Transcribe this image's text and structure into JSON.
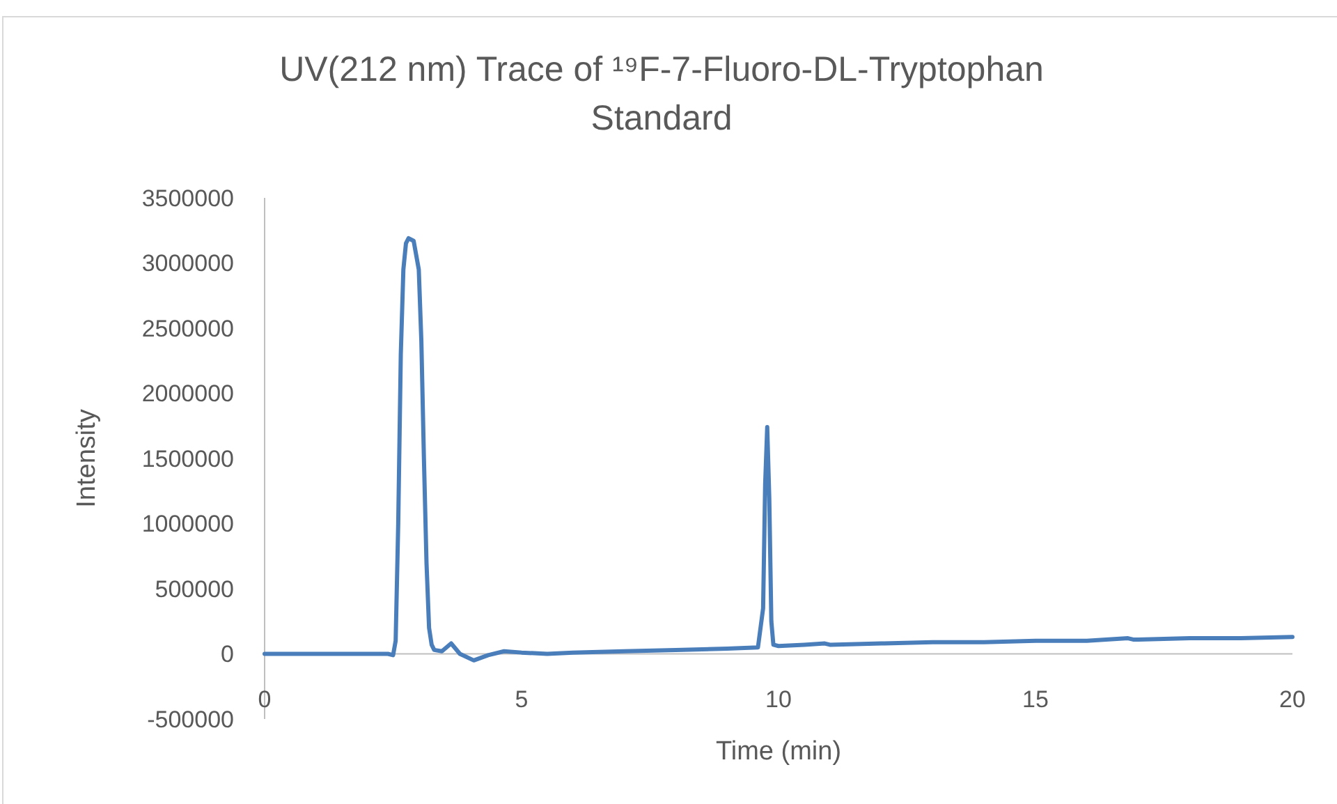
{
  "chart_data": {
    "type": "line",
    "title": "UV(212 nm) Trace of ¹⁹F-7-Fluoro-DL-Tryptophan Standard",
    "xlabel": "Time (min)",
    "ylabel": "Intensity",
    "xlim": [
      0,
      20
    ],
    "xticks": [
      0,
      5,
      10,
      15,
      20
    ],
    "ylim": [
      -500000,
      3500000
    ],
    "yticks": [
      -500000,
      0,
      500000,
      1000000,
      1500000,
      2000000,
      2500000,
      3000000,
      3500000
    ],
    "grid": false,
    "marker": "none",
    "line_style": "solid",
    "series": [
      {
        "color": "#4a7ebb",
        "x": [
          0,
          0.5,
          1,
          1.5,
          2,
          2.4,
          2.5,
          2.55,
          2.6,
          2.65,
          2.7,
          2.75,
          2.8,
          2.9,
          3.0,
          3.05,
          3.1,
          3.15,
          3.2,
          3.25,
          3.3,
          3.45,
          3.63,
          3.8,
          4.07,
          4.35,
          4.66,
          5.0,
          5.5,
          6,
          7,
          8,
          9,
          9.6,
          9.7,
          9.74,
          9.78,
          9.82,
          9.86,
          9.9,
          10,
          10.5,
          10.9,
          11,
          12,
          13,
          14,
          15,
          16,
          16.8,
          16.9,
          17,
          18,
          19,
          20
        ],
        "values": [
          0,
          0,
          0,
          0,
          0,
          0,
          -10000,
          100000,
          1000000,
          2300000,
          2950000,
          3150000,
          3190000,
          3170000,
          2950000,
          2400000,
          1500000,
          700000,
          200000,
          70000,
          30000,
          20000,
          80000,
          0,
          -50000,
          -10000,
          20000,
          10000,
          0,
          10000,
          20000,
          30000,
          40000,
          50000,
          350000,
          1300000,
          1740000,
          1200000,
          250000,
          70000,
          60000,
          70000,
          80000,
          70000,
          80000,
          90000,
          90000,
          100000,
          100000,
          120000,
          110000,
          110000,
          120000,
          120000,
          130000
        ]
      }
    ]
  }
}
